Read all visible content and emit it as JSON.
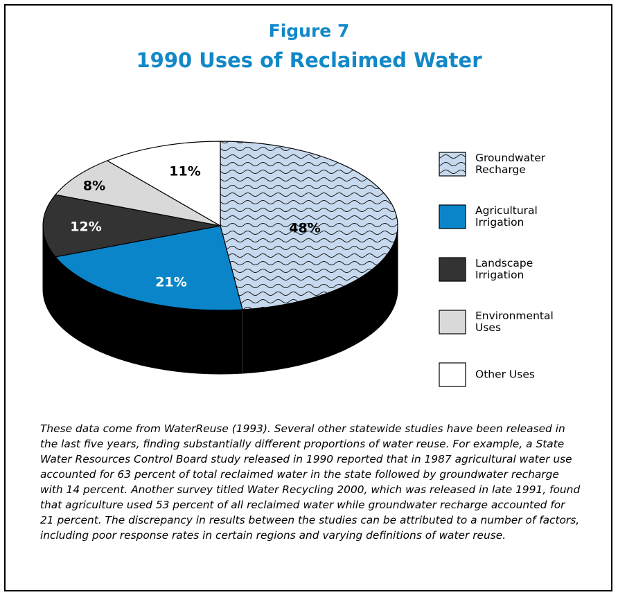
{
  "figure": {
    "number": "Figure 7",
    "title": "1990 Uses of Reclaimed Water"
  },
  "chart_data": {
    "type": "pie",
    "title": "1990 Uses of Reclaimed Water",
    "slices": [
      {
        "label": "Groundwater Recharge",
        "legend_lines": [
          "Groundwater",
          "Recharge"
        ],
        "value": 48,
        "display": "48%",
        "color": "#c6d9ee",
        "pattern": "wavy"
      },
      {
        "label": "Agricultural Irrigation",
        "legend_lines": [
          "Agricultural",
          "Irrigation"
        ],
        "value": 21,
        "display": "21%",
        "color": "#0b85c9",
        "pattern": "none"
      },
      {
        "label": "Landscape Irrigation",
        "legend_lines": [
          "Landscape",
          "Irrigation"
        ],
        "value": 12,
        "display": "12%",
        "color": "#333333",
        "pattern": "none"
      },
      {
        "label": "Environmental Uses",
        "legend_lines": [
          "Environmental",
          "Uses"
        ],
        "value": 8,
        "display": "8%",
        "color": "#d9d9d9",
        "pattern": "none"
      },
      {
        "label": "Other Uses",
        "legend_lines": [
          "Other Uses"
        ],
        "value": 11,
        "display": "11%",
        "color": "#ffffff",
        "pattern": "none"
      }
    ],
    "legend_position": "right",
    "style": "3d-pie"
  },
  "caption": "These data come from WaterReuse (1993). Several other statewide studies have been released in the last five years, finding substantially different proportions of water reuse. For example, a State Water Resources Control Board study released in 1990 reported that in 1987 agricultural water use accounted for 63 percent of total reclaimed water in the state followed by groundwater recharge with 14 percent. Another survey titled Water Recycling 2000, which was released in late 1991, found that agriculture used 53 percent of all reclaimed water while groundwater recharge accounted for 21 percent. The discrepancy in results between the studies can be attributed to a number of factors, including poor response rates in certain regions and varying definitions of water reuse."
}
